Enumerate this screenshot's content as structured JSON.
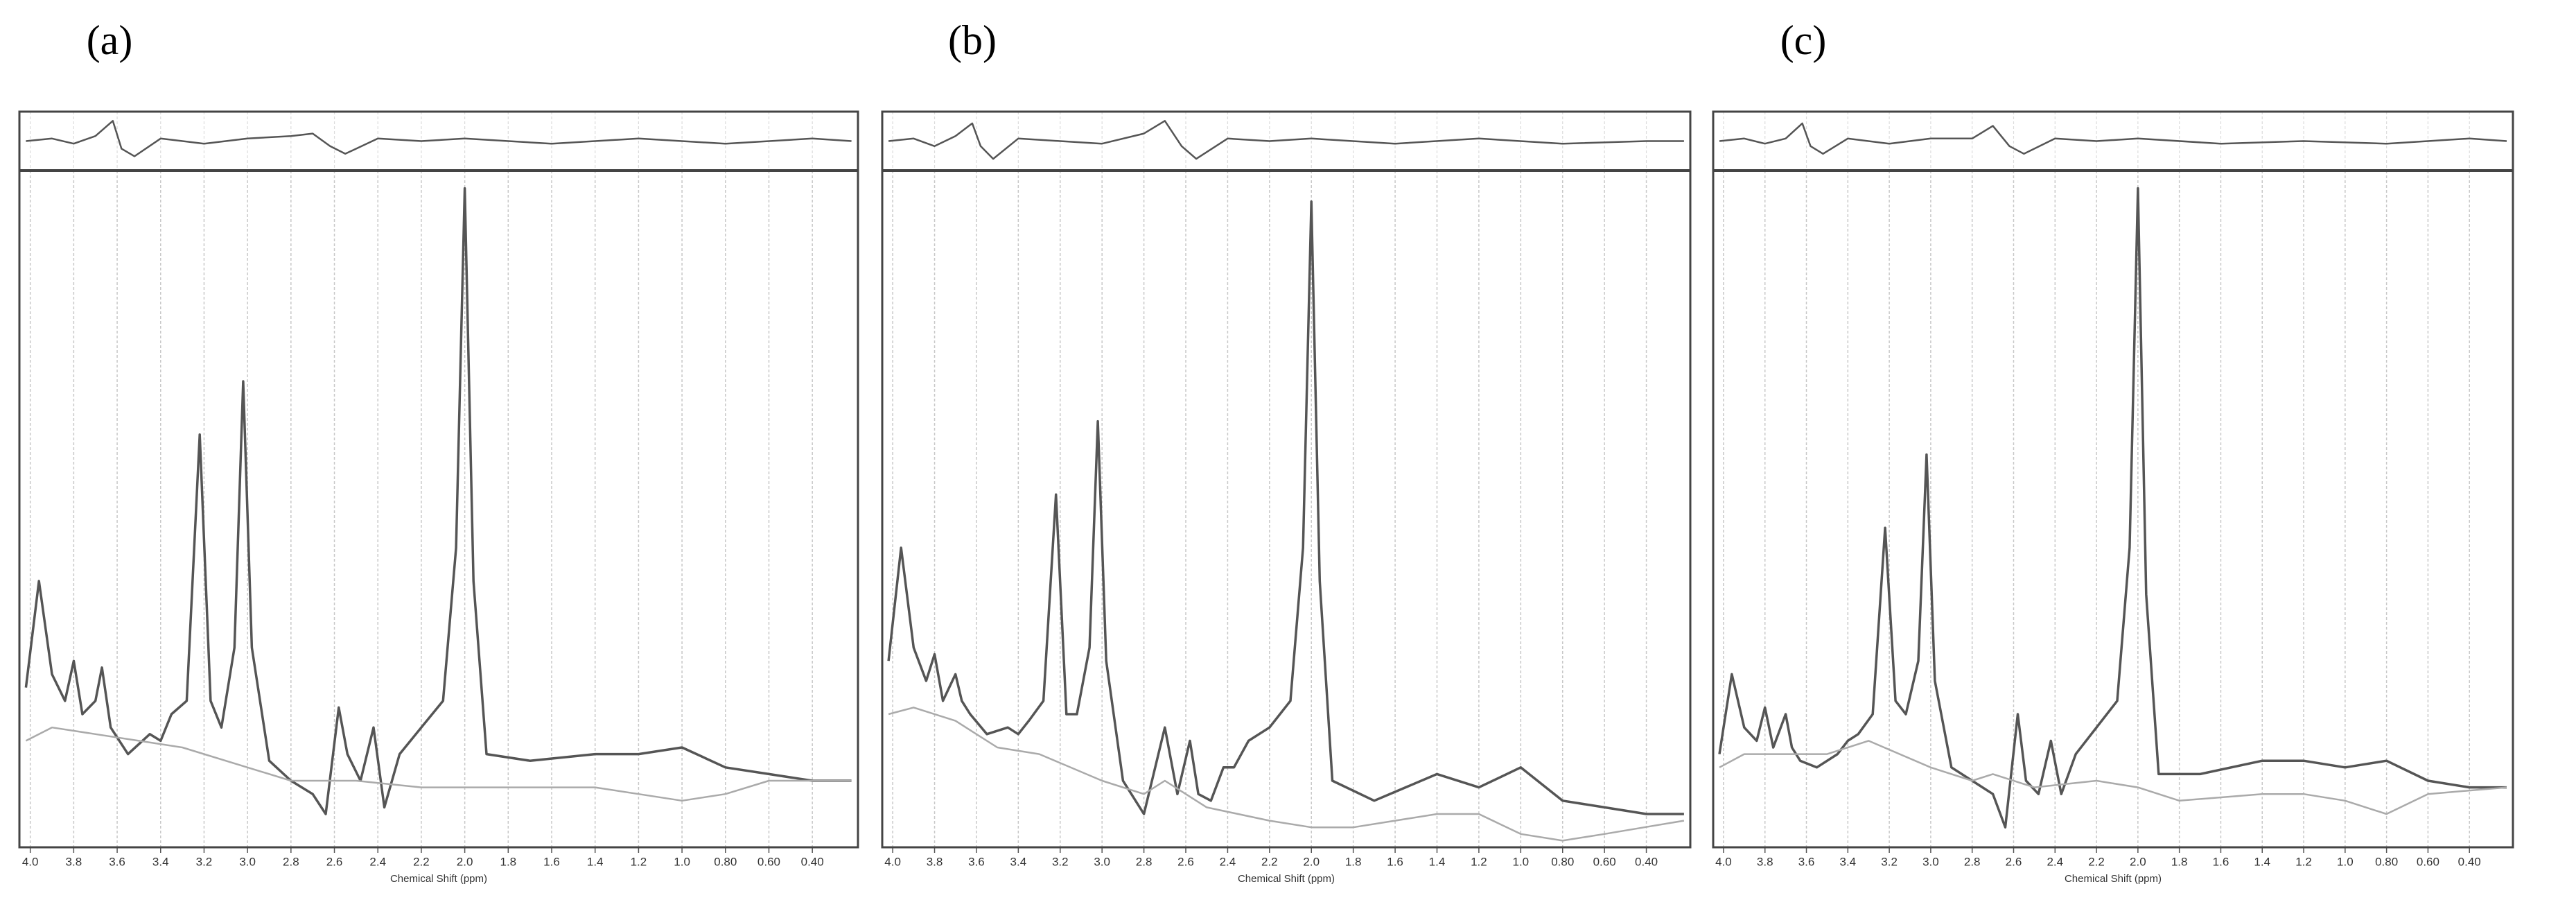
{
  "chart_data": [
    {
      "type": "line",
      "title": "(a)",
      "x_label": "Chemical Shift (ppm)",
      "xlim": [
        4.05,
        0.19
      ],
      "ylim": [
        0,
        100
      ],
      "y2lim": [
        -10,
        10
      ],
      "grid": true,
      "xticks": [
        {
          "value": 4,
          "label": "4.0"
        },
        3.8,
        3.6,
        3.4,
        3.2,
        {
          "value": 3,
          "label": "3.0"
        },
        2.8,
        2.6,
        2.4,
        2.2,
        {
          "value": 2,
          "label": "2.0"
        },
        1.8,
        1.6,
        1.4,
        1.2,
        {
          "value": 1,
          "label": "1.0"
        },
        {
          "value": 0.8,
          "label": "0.80"
        },
        {
          "value": 0.6,
          "label": "0.60"
        },
        {
          "value": 0.4,
          "label": "0.40"
        }
      ],
      "series": [
        {
          "color": "#555555",
          "x": [
            4.02,
            3.96,
            3.9,
            3.84,
            3.8,
            3.76,
            3.7,
            3.67,
            3.63,
            3.55,
            3.45,
            3.4,
            3.35,
            3.28,
            3.22,
            3.17,
            3.12,
            3.06,
            3.02,
            2.98,
            2.9,
            2.8,
            2.7,
            2.64,
            2.58,
            2.54,
            2.48,
            2.42,
            2.37,
            2.3,
            2.2,
            2.1,
            2.04,
            2.0,
            1.96,
            1.9,
            1.7,
            1.4,
            1.2,
            1.0,
            0.8,
            0.6,
            0.4,
            0.22
          ],
          "values": [
            24,
            40,
            26,
            22,
            28,
            20,
            22,
            27,
            18,
            14,
            17,
            16,
            20,
            22,
            62,
            22,
            18,
            30,
            70,
            30,
            13,
            10,
            8,
            5,
            21,
            14,
            10,
            18,
            6,
            14,
            18,
            22,
            45,
            99,
            40,
            14,
            13,
            14,
            14,
            15,
            12,
            11,
            10,
            10
          ]
        },
        {
          "color": "#aaaaaa",
          "x": [
            4.02,
            3.9,
            3.7,
            3.5,
            3.3,
            3.0,
            2.8,
            2.7,
            2.5,
            2.2,
            2.0,
            1.8,
            1.4,
            1.2,
            1.0,
            0.8,
            0.6,
            0.22
          ],
          "values": [
            16,
            18,
            17,
            16,
            15,
            12,
            10,
            10,
            10,
            9,
            9,
            9,
            9,
            8,
            7,
            8,
            10,
            10
          ]
        },
        {
          "color": "#555555",
          "axis": "y2",
          "x": [
            4.02,
            3.9,
            3.8,
            3.7,
            3.62,
            3.58,
            3.52,
            3.4,
            3.2,
            3.0,
            2.8,
            2.7,
            2.62,
            2.55,
            2.4,
            2.2,
            2.0,
            1.6,
            1.2,
            0.8,
            0.4,
            0.22
          ],
          "values": [
            0,
            1,
            -1,
            2,
            8,
            -3,
            -6,
            1,
            -1,
            1,
            2,
            3,
            -2,
            -5,
            1,
            0,
            1,
            -1,
            1,
            -1,
            1,
            0
          ]
        }
      ]
    },
    {
      "type": "line",
      "title": "(b)",
      "x_label": "Chemical Shift (ppm)",
      "xlim": [
        4.05,
        0.19
      ],
      "ylim": [
        0,
        100
      ],
      "y2lim": [
        -10,
        10
      ],
      "grid": true,
      "xticks": [
        {
          "value": 4,
          "label": "4.0"
        },
        3.8,
        3.6,
        3.4,
        3.2,
        {
          "value": 3,
          "label": "3.0"
        },
        2.8,
        2.6,
        2.4,
        2.2,
        {
          "value": 2,
          "label": "2.0"
        },
        1.8,
        1.6,
        1.4,
        1.2,
        {
          "value": 1,
          "label": "1.0"
        },
        {
          "value": 0.8,
          "label": "0.80"
        },
        {
          "value": 0.6,
          "label": "0.60"
        },
        {
          "value": 0.4,
          "label": "0.40"
        }
      ],
      "series": [
        {
          "color": "#555555",
          "x": [
            4.02,
            3.96,
            3.9,
            3.84,
            3.8,
            3.76,
            3.7,
            3.67,
            3.63,
            3.55,
            3.45,
            3.4,
            3.35,
            3.28,
            3.22,
            3.17,
            3.12,
            3.06,
            3.02,
            2.98,
            2.9,
            2.8,
            2.7,
            2.64,
            2.58,
            2.54,
            2.48,
            2.42,
            2.37,
            2.3,
            2.2,
            2.1,
            2.04,
            2.0,
            1.96,
            1.9,
            1.7,
            1.4,
            1.2,
            1.0,
            0.8,
            0.6,
            0.4,
            0.22
          ],
          "values": [
            28,
            45,
            30,
            25,
            29,
            22,
            26,
            22,
            20,
            17,
            18,
            17,
            19,
            22,
            53,
            20,
            20,
            30,
            64,
            28,
            10,
            5,
            18,
            8,
            16,
            8,
            7,
            12,
            12,
            16,
            18,
            22,
            45,
            97,
            40,
            10,
            7,
            11,
            9,
            12,
            7,
            6,
            5,
            5
          ]
        },
        {
          "color": "#aaaaaa",
          "x": [
            4.02,
            3.9,
            3.7,
            3.5,
            3.3,
            3.0,
            2.8,
            2.7,
            2.5,
            2.2,
            2.0,
            1.8,
            1.4,
            1.2,
            1.0,
            0.8,
            0.6,
            0.22
          ],
          "values": [
            20,
            21,
            19,
            15,
            14,
            10,
            8,
            10,
            6,
            4,
            3,
            3,
            5,
            5,
            2,
            1,
            2,
            4
          ]
        },
        {
          "color": "#555555",
          "axis": "y2",
          "x": [
            4.02,
            3.9,
            3.8,
            3.7,
            3.62,
            3.58,
            3.52,
            3.4,
            3.2,
            3.0,
            2.8,
            2.7,
            2.62,
            2.55,
            2.4,
            2.2,
            2.0,
            1.6,
            1.2,
            0.8,
            0.4,
            0.22
          ],
          "values": [
            0,
            1,
            -2,
            2,
            7,
            -2,
            -7,
            1,
            0,
            -1,
            3,
            8,
            -2,
            -7,
            1,
            0,
            1,
            -1,
            1,
            -1,
            0,
            0
          ]
        }
      ]
    },
    {
      "type": "line",
      "title": "(c)",
      "x_label": "Chemical Shift (ppm)",
      "xlim": [
        4.05,
        0.19
      ],
      "ylim": [
        0,
        100
      ],
      "y2lim": [
        -10,
        10
      ],
      "grid": true,
      "xticks": [
        {
          "value": 4,
          "label": "4.0"
        },
        3.8,
        3.6,
        3.4,
        3.2,
        {
          "value": 3,
          "label": "3.0"
        },
        2.8,
        2.6,
        2.4,
        2.2,
        {
          "value": 2,
          "label": "2.0"
        },
        1.8,
        1.6,
        1.4,
        1.2,
        {
          "value": 1,
          "label": "1.0"
        },
        {
          "value": 0.8,
          "label": "0.80"
        },
        {
          "value": 0.6,
          "label": "0.60"
        },
        {
          "value": 0.4,
          "label": "0.40"
        }
      ],
      "series": [
        {
          "color": "#555555",
          "x": [
            4.02,
            3.96,
            3.9,
            3.84,
            3.8,
            3.76,
            3.7,
            3.67,
            3.63,
            3.55,
            3.45,
            3.4,
            3.35,
            3.28,
            3.22,
            3.17,
            3.12,
            3.06,
            3.02,
            2.98,
            2.9,
            2.8,
            2.7,
            2.64,
            2.58,
            2.54,
            2.48,
            2.42,
            2.37,
            2.3,
            2.2,
            2.1,
            2.04,
            2.0,
            1.96,
            1.9,
            1.7,
            1.4,
            1.2,
            1.0,
            0.8,
            0.6,
            0.4,
            0.22
          ],
          "values": [
            14,
            26,
            18,
            16,
            21,
            15,
            20,
            15,
            13,
            12,
            14,
            16,
            17,
            20,
            48,
            22,
            20,
            28,
            59,
            25,
            12,
            10,
            8,
            3,
            20,
            10,
            8,
            16,
            8,
            14,
            18,
            22,
            45,
            99,
            38,
            11,
            11,
            13,
            13,
            12,
            13,
            10,
            9,
            9
          ]
        },
        {
          "color": "#aaaaaa",
          "x": [
            4.02,
            3.9,
            3.7,
            3.5,
            3.3,
            3.0,
            2.8,
            2.7,
            2.5,
            2.2,
            2.0,
            1.8,
            1.4,
            1.2,
            1.0,
            0.8,
            0.6,
            0.22
          ],
          "values": [
            12,
            14,
            14,
            14,
            16,
            12,
            10,
            11,
            9,
            10,
            9,
            7,
            8,
            8,
            7,
            5,
            8,
            9
          ]
        },
        {
          "color": "#555555",
          "axis": "y2",
          "x": [
            4.02,
            3.9,
            3.8,
            3.7,
            3.62,
            3.58,
            3.52,
            3.4,
            3.2,
            3.0,
            2.8,
            2.7,
            2.62,
            2.55,
            2.4,
            2.2,
            2.0,
            1.6,
            1.2,
            0.8,
            0.4,
            0.22
          ],
          "values": [
            0,
            1,
            -1,
            1,
            7,
            -2,
            -5,
            1,
            -1,
            1,
            1,
            6,
            -2,
            -5,
            1,
            0,
            1,
            -1,
            0,
            -1,
            1,
            0
          ]
        }
      ]
    }
  ]
}
